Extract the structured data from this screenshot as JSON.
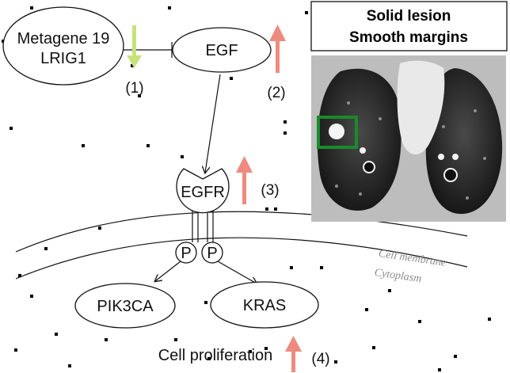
{
  "nodes": {
    "metagene": {
      "line1": "Metagene 19",
      "line2": "LRIG1"
    },
    "egf": "EGF",
    "egfr": "EGFR",
    "p_left": "P",
    "p_right": "P",
    "pik3ca": "PIK3CA",
    "kras": "KRAS"
  },
  "step_labels": {
    "s1": "(1)",
    "s2": "(2)",
    "s3": "(3)",
    "s4": "(4)"
  },
  "membrane": {
    "outer_label": "Cell membrane",
    "inner_label": "Cytoplasm"
  },
  "outcome": "Cell proliferation",
  "ct_panel": {
    "line1": "Solid lesion",
    "line2": "Smooth margins"
  },
  "colors": {
    "down_arrow": "#c8e27a",
    "up_arrow": "#f08a7e",
    "lesion_box": "#1a8a2a",
    "membrane_text": "#8a8a8a"
  },
  "arrow_directions": {
    "s1": "down",
    "s2": "up",
    "s3": "up",
    "s4": "up"
  }
}
